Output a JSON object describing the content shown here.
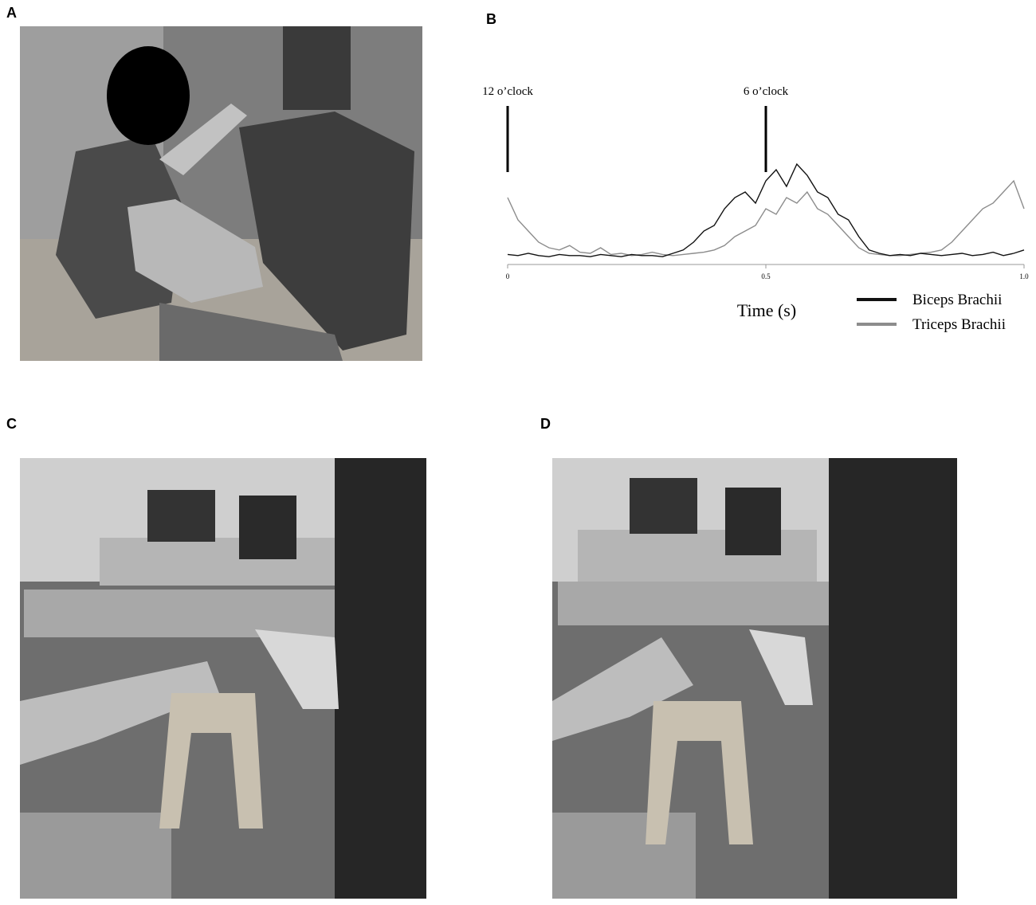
{
  "panel_labels": [
    "A",
    "B",
    "C",
    "D"
  ],
  "chart_data": {
    "type": "line",
    "xlabel": "Time (s)",
    "x": [
      0,
      0.02,
      0.04,
      0.06,
      0.08,
      0.1,
      0.12,
      0.14,
      0.16,
      0.18,
      0.2,
      0.22,
      0.24,
      0.26,
      0.28,
      0.3,
      0.32,
      0.34,
      0.36,
      0.38,
      0.4,
      0.42,
      0.44,
      0.46,
      0.48,
      0.5,
      0.52,
      0.54,
      0.56,
      0.58,
      0.6,
      0.62,
      0.64,
      0.66,
      0.68,
      0.7,
      0.72,
      0.74,
      0.76,
      0.78,
      0.8,
      0.82,
      0.84,
      0.86,
      0.88,
      0.9,
      0.92,
      0.94,
      0.96,
      0.98,
      1
    ],
    "xlim": [
      0,
      1
    ],
    "ylim": [
      0,
      100
    ],
    "xticks": [
      0,
      0.5,
      {
        "value": 1,
        "label": "1.0"
      }
    ],
    "annotations": [
      {
        "text": "12 o’clock",
        "x": 0
      },
      {
        "text": "6 o’clock",
        "x": 0.5
      }
    ],
    "series": [
      {
        "name": "Biceps Brachii",
        "color": "#111111",
        "values": [
          4,
          3,
          5,
          3,
          2,
          4,
          3,
          3,
          2,
          4,
          3,
          2,
          4,
          3,
          3,
          2,
          5,
          8,
          15,
          25,
          30,
          45,
          55,
          60,
          50,
          70,
          80,
          65,
          85,
          75,
          60,
          55,
          40,
          35,
          20,
          8,
          5,
          3,
          4,
          3,
          5,
          4,
          3,
          4,
          5,
          3,
          4,
          6,
          3,
          5,
          8
        ]
      },
      {
        "name": "Triceps Brachii",
        "color": "#8c8c8c",
        "values": [
          55,
          35,
          25,
          15,
          10,
          8,
          12,
          6,
          5,
          10,
          4,
          5,
          3,
          4,
          6,
          4,
          3,
          4,
          5,
          6,
          8,
          12,
          20,
          25,
          30,
          45,
          40,
          55,
          50,
          60,
          45,
          40,
          30,
          20,
          10,
          5,
          4,
          3,
          3,
          4,
          5,
          6,
          8,
          15,
          25,
          35,
          45,
          50,
          60,
          70,
          45
        ]
      }
    ]
  }
}
